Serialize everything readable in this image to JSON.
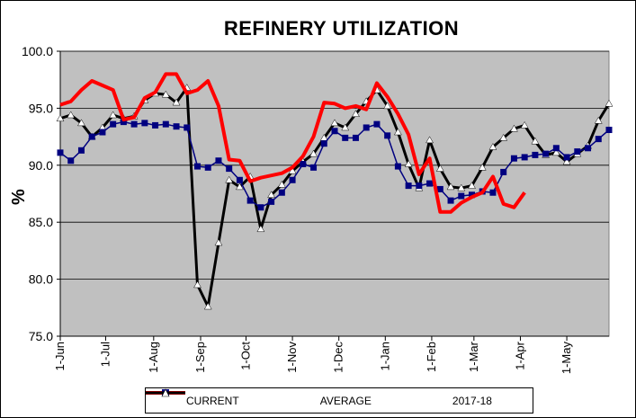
{
  "chart_data": {
    "type": "line",
    "title": "REFINERY UTILIZATION",
    "ylabel": "%",
    "xlabel": "",
    "ylim": [
      75.0,
      100.0
    ],
    "yticks": [
      "75.0",
      "80.0",
      "85.0",
      "90.0",
      "95.0",
      "100.0"
    ],
    "x_tick_labels": [
      "1-Jun",
      "1-Jul",
      "1-Aug",
      "1-Sep",
      "1-Oct",
      "1-Nov",
      "1-Dec",
      "1-Jan",
      "1-Feb",
      "1-Mar",
      "1-Apr",
      "1-May"
    ],
    "grid": true,
    "legend_position": "bottom",
    "series": [
      {
        "name": "CURRENT",
        "color": "#ff0000",
        "values": [
          95.3,
          95.6,
          96.6,
          97.4,
          97.0,
          96.6,
          94.0,
          94.2,
          95.9,
          96.4,
          98.0,
          98.0,
          96.3,
          96.6,
          97.4,
          95.2,
          90.5,
          90.4,
          88.6,
          88.9,
          89.1,
          89.3,
          89.8,
          90.8,
          92.5,
          95.5,
          95.4,
          95.0,
          95.2,
          94.9,
          97.2,
          96.0,
          94.5,
          92.7,
          89.2,
          90.6,
          85.9,
          85.9,
          86.7,
          87.2,
          87.6,
          89.0,
          86.6,
          86.3,
          87.6
        ]
      },
      {
        "name": "AVERAGE",
        "color": "#000080",
        "values": [
          91.1,
          90.4,
          91.3,
          92.5,
          92.9,
          93.6,
          93.8,
          93.6,
          93.7,
          93.5,
          93.6,
          93.4,
          93.3,
          89.9,
          89.8,
          90.4,
          89.7,
          88.7,
          86.9,
          86.3,
          86.8,
          87.6,
          88.7,
          90.1,
          89.8,
          91.9,
          93.0,
          92.4,
          92.4,
          93.3,
          93.6,
          92.6,
          89.9,
          88.2,
          88.2,
          88.4,
          87.9,
          86.9,
          87.3,
          87.4,
          87.7,
          87.6,
          89.4,
          90.6,
          90.7,
          90.9,
          91.0,
          91.5,
          90.7,
          91.2,
          91.5,
          92.3,
          93.1
        ]
      },
      {
        "name": "2017-18",
        "color": "#000000",
        "values": [
          94.1,
          94.4,
          93.7,
          92.5,
          93.3,
          94.4,
          94.1,
          94.3,
          95.7,
          96.3,
          96.2,
          95.5,
          96.8,
          79.5,
          77.6,
          83.2,
          88.7,
          88.1,
          89.0,
          84.4,
          87.4,
          88.3,
          89.5,
          90.3,
          91.0,
          92.4,
          93.7,
          93.3,
          94.5,
          95.6,
          96.6,
          95.2,
          92.9,
          90.1,
          88.0,
          92.2,
          89.7,
          88.1,
          88.0,
          88.2,
          89.8,
          91.6,
          92.4,
          93.2,
          93.5,
          92.1,
          90.9,
          91.1,
          90.3,
          91.0,
          91.7,
          93.9,
          95.4
        ]
      }
    ]
  }
}
